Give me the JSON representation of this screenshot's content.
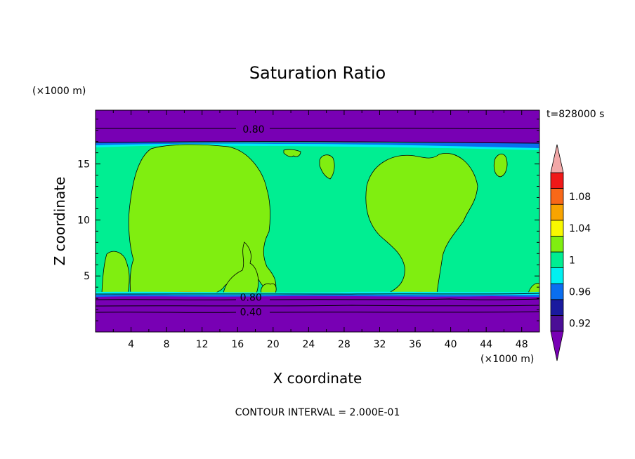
{
  "chart_data": {
    "type": "contour",
    "title": "Saturation Ratio",
    "xlabel": "X coordinate",
    "ylabel": "Z coordinate",
    "x_unit": "(×1000 m)",
    "y_unit": "(×1000 m)",
    "time_label": "t=828000 s",
    "contour_interval_note": "CONTOUR INTERVAL = 2.000E-01",
    "xlim": [
      0,
      50
    ],
    "ylim": [
      0,
      19.8
    ],
    "x_ticks": [
      "4",
      "8",
      "12",
      "16",
      "20",
      "24",
      "28",
      "32",
      "36",
      "40",
      "44",
      "48"
    ],
    "x_tick_values": [
      4,
      8,
      12,
      16,
      20,
      24,
      28,
      32,
      36,
      40,
      44,
      48
    ],
    "y_ticks": [
      "5",
      "10",
      "15"
    ],
    "y_tick_values": [
      5,
      10,
      15
    ],
    "contour_labels": [
      {
        "text": "0.80",
        "x": 17.8,
        "z": 18.1
      },
      {
        "text": "0.80",
        "x": 17.5,
        "z": 3.1
      },
      {
        "text": "0.40",
        "x": 17.5,
        "z": 1.8
      }
    ],
    "colorbar": {
      "levels": [
        0.92,
        0.94,
        0.96,
        0.98,
        1.0,
        1.02,
        1.04,
        1.06,
        1.08,
        1.1
      ],
      "colors": [
        "#4b0e96",
        "#1a1a9e",
        "#0a6ef0",
        "#00f0f0",
        "#00ee92",
        "#80ee10",
        "#f8f800",
        "#f8a400",
        "#f86818",
        "#f01818"
      ],
      "under_color": "#7800b4",
      "over_color": "#f2a8a8",
      "labels": [
        "1.08",
        "1.04",
        "1",
        "0.96",
        "0.92"
      ],
      "label_values": [
        1.08,
        1.04,
        1.0,
        0.96,
        0.92
      ]
    },
    "regions": {
      "background_color": "#00ee92",
      "cloud_color": "#80ee10",
      "dry_color": "#7800b4",
      "edge_color": "#0a6ef0",
      "hot_color": "#f86818"
    }
  }
}
